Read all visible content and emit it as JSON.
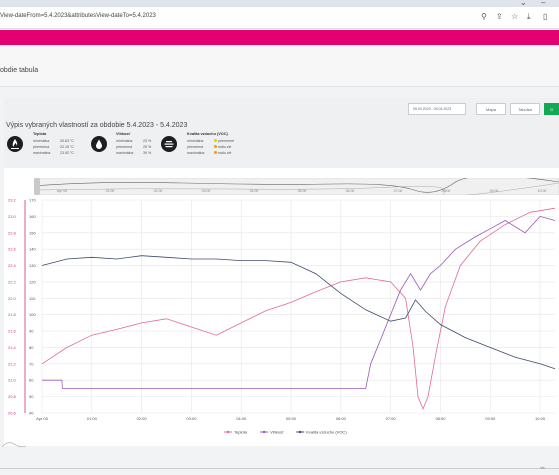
{
  "browser": {
    "url": "View-dateFrom=5.4.2023&attributesView-dateTo=5.4.2023",
    "controls": [
      "⌄",
      "–"
    ]
  },
  "page": {
    "title": "obdie tabula"
  },
  "toolbar": {
    "date_range": "05.04.2023 - 05.04.2023",
    "buttons": [
      "Mapa",
      "Tabulka",
      "G"
    ]
  },
  "summary": {
    "title": "Výpis vybraných vlastností za obdobie 5.4.2023 - 5.4.2023",
    "groups": [
      {
        "name": "Teplota",
        "icon": "thermometer-flame-icon",
        "rows": [
          {
            "label": "minimálna",
            "value": "20.63 °C"
          },
          {
            "label": "priemerná",
            "value": "22.15 °C"
          },
          {
            "label": "maximálna",
            "value": "23.92 °C"
          }
        ]
      },
      {
        "name": "Vlhkosť",
        "icon": "water-drop-icon",
        "rows": [
          {
            "label": "minimálna",
            "value": "23 %"
          },
          {
            "label": "priemerná",
            "value": "25 %"
          },
          {
            "label": "maximálna",
            "value": "39 %"
          }
        ]
      },
      {
        "name": "Kvalita vzduchu (VOC)",
        "icon": "air-lines-icon",
        "rows": [
          {
            "label": "minimálna",
            "value": "priemerné",
            "color": "#f5c500"
          },
          {
            "label": "priemerná",
            "value": "málo zlé",
            "color": "#f39c12"
          },
          {
            "label": "maximálna",
            "value": "málo zlé",
            "color": "#f39c12"
          }
        ]
      }
    ]
  },
  "navigator": {
    "labels": [
      "Apr 05",
      "01:00",
      "02:00",
      "03:00",
      "04:00",
      "05:00",
      "06:00",
      "07:00",
      "08:00",
      "09:00",
      "10:00"
    ]
  },
  "chart_data": {
    "type": "line",
    "x_ticks": [
      "Apr 05",
      "01:00",
      "02:00",
      "03:00",
      "04:00",
      "05:00",
      "06:00",
      "07:00",
      "08:00",
      "09:00",
      "10:00"
    ],
    "xlim": [
      0,
      10.3
    ],
    "left_axis": {
      "ticks": [
        "23.2",
        "23.0",
        "22.8",
        "22.6",
        "22.4",
        "22.2",
        "22.0",
        "21.8",
        "21.6",
        "21.4",
        "21.2",
        "21.0",
        "20.8",
        "20.6"
      ],
      "range": [
        20.6,
        23.2
      ],
      "color": "#d4307a"
    },
    "mid_axis": {
      "ticks": [
        "170",
        "160",
        "150",
        "140",
        "130",
        "120",
        "110",
        "100",
        "90",
        "80",
        "70",
        "60",
        "50",
        "40"
      ],
      "range": [
        40,
        170
      ]
    },
    "legend": "bottom-center",
    "grid": true,
    "series": [
      {
        "name": "Teplota",
        "color": "#e06b95",
        "axis": "left",
        "points": [
          [
            0,
            21.2
          ],
          [
            0.5,
            21.4
          ],
          [
            1,
            21.55
          ],
          [
            1.5,
            21.62
          ],
          [
            2,
            21.7
          ],
          [
            2.5,
            21.75
          ],
          [
            3,
            21.65
          ],
          [
            3.5,
            21.55
          ],
          [
            4,
            21.7
          ],
          [
            4.5,
            21.85
          ],
          [
            5,
            21.95
          ],
          [
            5.5,
            22.08
          ],
          [
            6,
            22.2
          ],
          [
            6.5,
            22.25
          ],
          [
            7,
            22.2
          ],
          [
            7.3,
            22.0
          ],
          [
            7.45,
            21.4
          ],
          [
            7.55,
            20.8
          ],
          [
            7.65,
            20.65
          ],
          [
            7.75,
            20.8
          ],
          [
            7.9,
            21.3
          ],
          [
            8.1,
            21.9
          ],
          [
            8.4,
            22.4
          ],
          [
            8.8,
            22.7
          ],
          [
            9.3,
            22.9
          ],
          [
            9.8,
            23.05
          ],
          [
            10.3,
            23.1
          ]
        ]
      },
      {
        "name": "Vlhkosť",
        "color": "#9b59b6",
        "axis": "left",
        "points": [
          [
            0,
            21.0
          ],
          [
            0.4,
            21.0
          ],
          [
            0.41,
            20.9
          ],
          [
            6.5,
            20.9
          ],
          [
            6.6,
            21.2
          ],
          [
            6.8,
            21.5
          ],
          [
            7.0,
            21.8
          ],
          [
            7.2,
            22.1
          ],
          [
            7.4,
            22.3
          ],
          [
            7.6,
            22.1
          ],
          [
            7.8,
            22.3
          ],
          [
            8.0,
            22.4
          ],
          [
            8.3,
            22.6
          ],
          [
            8.7,
            22.75
          ],
          [
            9.0,
            22.85
          ],
          [
            9.3,
            22.95
          ],
          [
            9.7,
            22.8
          ],
          [
            10.0,
            23.0
          ],
          [
            10.3,
            22.95
          ]
        ]
      },
      {
        "name": "Kvalita vzduchu (VOC)",
        "color": "#3c4a6b",
        "axis": "mid",
        "points": [
          [
            0,
            130
          ],
          [
            0.5,
            134
          ],
          [
            1,
            135
          ],
          [
            1.5,
            134
          ],
          [
            2,
            136
          ],
          [
            2.5,
            135
          ],
          [
            3,
            134
          ],
          [
            3.5,
            134
          ],
          [
            4,
            133
          ],
          [
            4.5,
            133
          ],
          [
            5,
            132
          ],
          [
            5.5,
            125
          ],
          [
            6,
            113
          ],
          [
            6.5,
            103
          ],
          [
            7,
            96
          ],
          [
            7.3,
            98
          ],
          [
            7.5,
            109
          ],
          [
            7.7,
            102
          ],
          [
            8,
            94
          ],
          [
            8.5,
            86
          ],
          [
            9,
            80
          ],
          [
            9.5,
            74
          ],
          [
            10,
            70
          ],
          [
            10.3,
            67
          ]
        ]
      }
    ]
  },
  "colors": {
    "brand": "#e4006e",
    "accent": "#10a954"
  }
}
